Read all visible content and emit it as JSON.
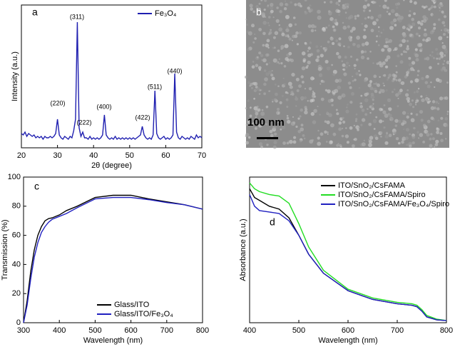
{
  "chart_data": [
    {
      "type": "line",
      "label": "a",
      "xlabel": "2θ (degree)",
      "ylabel": "Intensity (a.u.)",
      "x": [
        20,
        20.5,
        21,
        21.5,
        22,
        22.5,
        23,
        23.5,
        24,
        24.5,
        25,
        25.5,
        26,
        26.5,
        27,
        27.5,
        28,
        28.5,
        29,
        29.5,
        30,
        30.5,
        31,
        31.5,
        32,
        32.5,
        33,
        33.5,
        34,
        34.5,
        35,
        35.5,
        36,
        36.5,
        37,
        37.5,
        38,
        38.5,
        39,
        39.5,
        40,
        40.5,
        41,
        41.5,
        42,
        42.5,
        43,
        43.5,
        44,
        44.5,
        45,
        45.5,
        46,
        46.5,
        47,
        47.5,
        48,
        48.5,
        49,
        49.5,
        50,
        50.5,
        51,
        51.5,
        52,
        52.5,
        53,
        53.5,
        54,
        54.5,
        55,
        55.5,
        56,
        56.5,
        57,
        57.5,
        58,
        58.5,
        59,
        59.5,
        60,
        60.5,
        61,
        61.5,
        62,
        62.5,
        63,
        63.5,
        64,
        64.5,
        65,
        65.5,
        66,
        66.5,
        67,
        67.5,
        68,
        68.5,
        69,
        69.5,
        70
      ],
      "series": [
        {
          "name": "Fe₃O₄",
          "color": "#1f1fb0",
          "values": [
            10,
            9,
            11,
            8,
            10,
            9,
            8,
            9,
            7,
            8,
            7,
            8,
            6,
            8,
            7,
            7,
            8,
            7,
            8,
            10,
            20,
            9,
            7,
            6,
            8,
            7,
            6,
            8,
            7,
            12,
            20,
            88,
            14,
            8,
            11,
            7,
            7,
            6,
            8,
            6,
            7,
            6,
            7,
            6,
            7,
            9,
            23,
            9,
            7,
            6,
            7,
            6,
            8,
            6,
            7,
            6,
            7,
            6,
            7,
            6,
            7,
            6,
            7,
            6,
            7,
            8,
            9,
            15,
            9,
            7,
            6,
            7,
            6,
            9,
            40,
            10,
            7,
            6,
            7,
            8,
            6,
            7,
            6,
            7,
            9,
            52,
            11,
            7,
            6,
            8,
            7,
            6,
            7,
            6,
            8,
            7,
            6,
            9,
            7,
            8,
            7
          ]
        }
      ],
      "xlim": [
        20,
        70
      ],
      "xticks": [
        20,
        30,
        40,
        50,
        60,
        70
      ],
      "ylim": [
        0,
        100
      ],
      "legend": "upper right",
      "annotations": [
        "(220)",
        "(311)",
        "(222)",
        "(400)",
        "(422)",
        "(511)",
        "(440)"
      ]
    },
    {
      "type": "image",
      "label": "b",
      "scale_label": "100 nm"
    },
    {
      "type": "line",
      "label": "c",
      "xlabel": "Wavelength (nm)",
      "ylabel": "Transmission (%)",
      "x": [
        300,
        310,
        320,
        330,
        340,
        350,
        360,
        370,
        380,
        400,
        420,
        450,
        500,
        550,
        600,
        650,
        700,
        750,
        800
      ],
      "series": [
        {
          "name": "Glass/ITO",
          "color": "#000000",
          "values": [
            0,
            15,
            35,
            50,
            60,
            66,
            70,
            71.5,
            72,
            74,
            77,
            80,
            86,
            87.5,
            87.5,
            85,
            83,
            81,
            78
          ]
        },
        {
          "name": "Glass/ITO/Fe₃O₄",
          "color": "#2020c0",
          "values": [
            0,
            12,
            30,
            45,
            55,
            62,
            66,
            69,
            71,
            73,
            75,
            79,
            85,
            86,
            86,
            84.5,
            82.5,
            81,
            78
          ]
        }
      ],
      "xlim": [
        300,
        800
      ],
      "xticks": [
        300,
        400,
        500,
        600,
        700,
        800
      ],
      "ylim": [
        0,
        100
      ],
      "yticks": [
        0,
        20,
        40,
        60,
        80,
        100
      ],
      "legend": "lower right"
    },
    {
      "type": "line",
      "label": "d",
      "xlabel": "Wavelength (nm)",
      "ylabel": "Absorbance (a.u.)",
      "x": [
        400,
        410,
        420,
        440,
        460,
        480,
        500,
        520,
        550,
        600,
        650,
        700,
        730,
        740,
        750,
        760,
        780,
        800
      ],
      "series": [
        {
          "name": "ITO/SnO₂/CsFAMA",
          "color": "#000000",
          "values": [
            92,
            86,
            84,
            80,
            78,
            72,
            60,
            47,
            34,
            22,
            16,
            13,
            12,
            11,
            8,
            4,
            2,
            1.5
          ]
        },
        {
          "name": "ITO/SnO₂/CsFAMA/Spiro",
          "color": "#22dd22",
          "values": [
            96,
            92,
            90,
            88,
            87,
            82,
            68,
            52,
            36,
            23,
            17,
            14,
            13,
            12,
            9,
            5,
            2.5,
            1.5
          ]
        },
        {
          "name": "ITO/SnO₂/CsFAMA/Fe₃O₄/Spiro",
          "color": "#2020c0",
          "values": [
            88,
            80,
            77,
            76,
            75,
            70,
            60,
            47,
            34,
            22,
            16,
            13,
            12,
            11,
            8,
            4,
            2,
            1.5
          ]
        }
      ],
      "xlim": [
        400,
        800
      ],
      "xticks": [
        400,
        500,
        600,
        700,
        800
      ],
      "ylim": [
        0,
        100
      ],
      "legend": "upper right"
    }
  ]
}
